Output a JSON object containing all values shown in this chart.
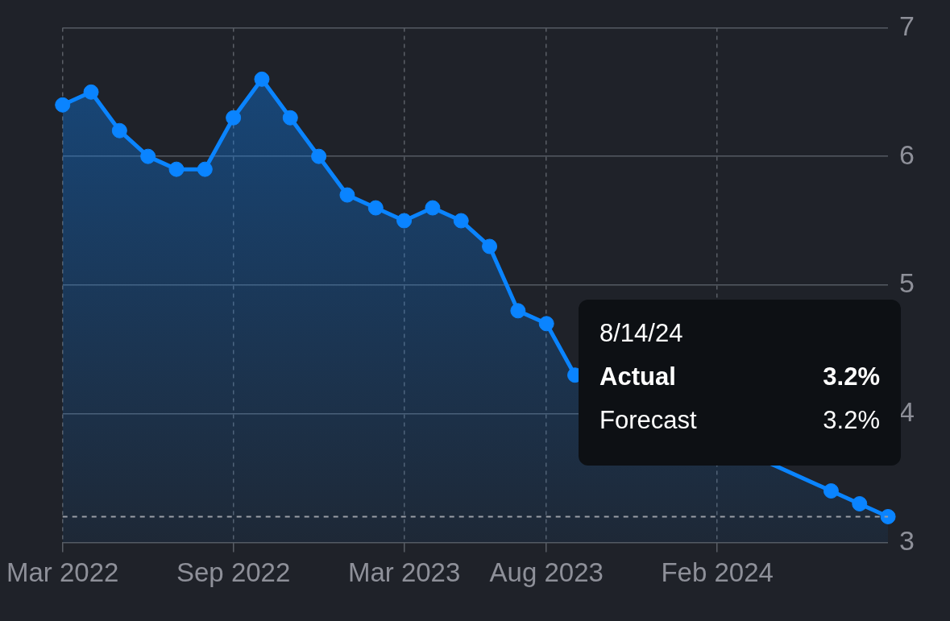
{
  "chart_data": {
    "type": "area",
    "categories": [
      "Mar 2022",
      null,
      null,
      null,
      null,
      null,
      "Sep 2022",
      null,
      null,
      null,
      null,
      null,
      "Mar 2023",
      null,
      null,
      null,
      null,
      "Aug 2023",
      null,
      null,
      null,
      null,
      null,
      "Feb 2024",
      null,
      null,
      null,
      null,
      null,
      null
    ],
    "series": [
      {
        "color": "#0a84ff",
        "values": [
          6.4,
          6.5,
          6.2,
          6.0,
          5.9,
          5.9,
          6.3,
          6.6,
          6.3,
          6.0,
          5.7,
          5.6,
          5.5,
          5.6,
          5.5,
          5.3,
          4.8,
          4.7,
          4.3,
          null,
          null,
          null,
          null,
          null,
          null,
          null,
          null,
          3.4,
          3.3,
          3.2
        ]
      }
    ],
    "ylim": [
      3,
      7
    ],
    "yticks": [
      3,
      4,
      5,
      6,
      7
    ],
    "grid": true,
    "marker": "circle",
    "line_style": "solid",
    "ref_lines": [
      {
        "axis": "y",
        "value": 3.2,
        "color": "#9a9ea6",
        "line_style": "dashed"
      }
    ],
    "annotations": [
      "8/14/24",
      "Actual",
      "3.2%",
      "Forecast",
      "3.2%"
    ]
  }
}
